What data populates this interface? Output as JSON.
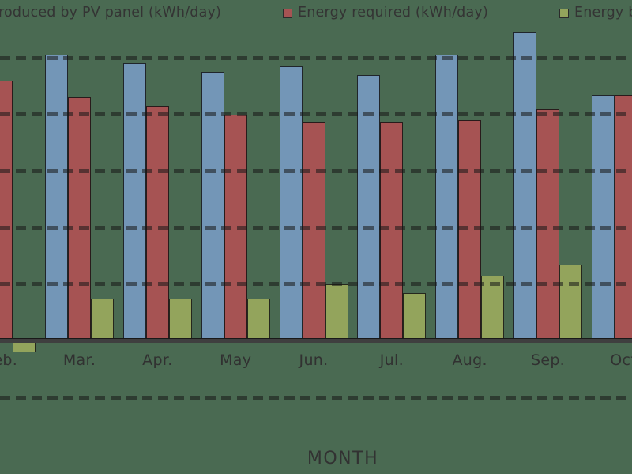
{
  "colors": {
    "background": "#4a6a52",
    "produced": "#7396b7",
    "required": "#a65353",
    "balance": "#93a45c",
    "ink": "#333333"
  },
  "legend": {
    "items": [
      {
        "key": "produced",
        "label": "roduced by PV panel (kWh/day)",
        "swatch_visible": false,
        "swatch_color": "#7396b7"
      },
      {
        "key": "required",
        "label": "Energy required (kWh/day)",
        "swatch_visible": true,
        "swatch_color": "#a65353"
      },
      {
        "key": "balance",
        "label": "Energy ba",
        "swatch_visible": true,
        "swatch_color": "#93a45c"
      }
    ]
  },
  "chart_data": {
    "type": "bar",
    "title": "",
    "xlabel": "MONTH",
    "ylabel": "",
    "categories": [
      "Feb.",
      "Mar.",
      "Apr.",
      "May",
      "Jun.",
      "Jul.",
      "Aug.",
      "Sep.",
      "Oct."
    ],
    "series": [
      {
        "key": "produced",
        "name": "roduced by PV panel (kWh/day)",
        "color": "#7396b7",
        "values": [
          null,
          5.05,
          4.9,
          4.75,
          4.85,
          4.7,
          5.05,
          5.45,
          4.35
        ]
      },
      {
        "key": "required",
        "name": "Energy required (kWh/day)",
        "color": "#a65353",
        "values": [
          4.6,
          4.3,
          4.15,
          4.0,
          3.85,
          3.85,
          3.9,
          4.1,
          4.35
        ]
      },
      {
        "key": "balance",
        "name": "Energy ba",
        "color": "#93a45c",
        "values": [
          -0.2,
          0.75,
          0.75,
          0.75,
          1.0,
          0.85,
          1.15,
          1.35,
          null
        ]
      }
    ],
    "yaxis": {
      "tick_labels_visible": false,
      "gridlines_at": [
        5,
        4,
        3,
        2,
        1,
        0,
        -1
      ],
      "gridline_style": "dashed",
      "zero_line": "solid"
    },
    "notes": "left and right edges of plot are cropped; Feb produced bar and Oct balance bar not visible"
  }
}
